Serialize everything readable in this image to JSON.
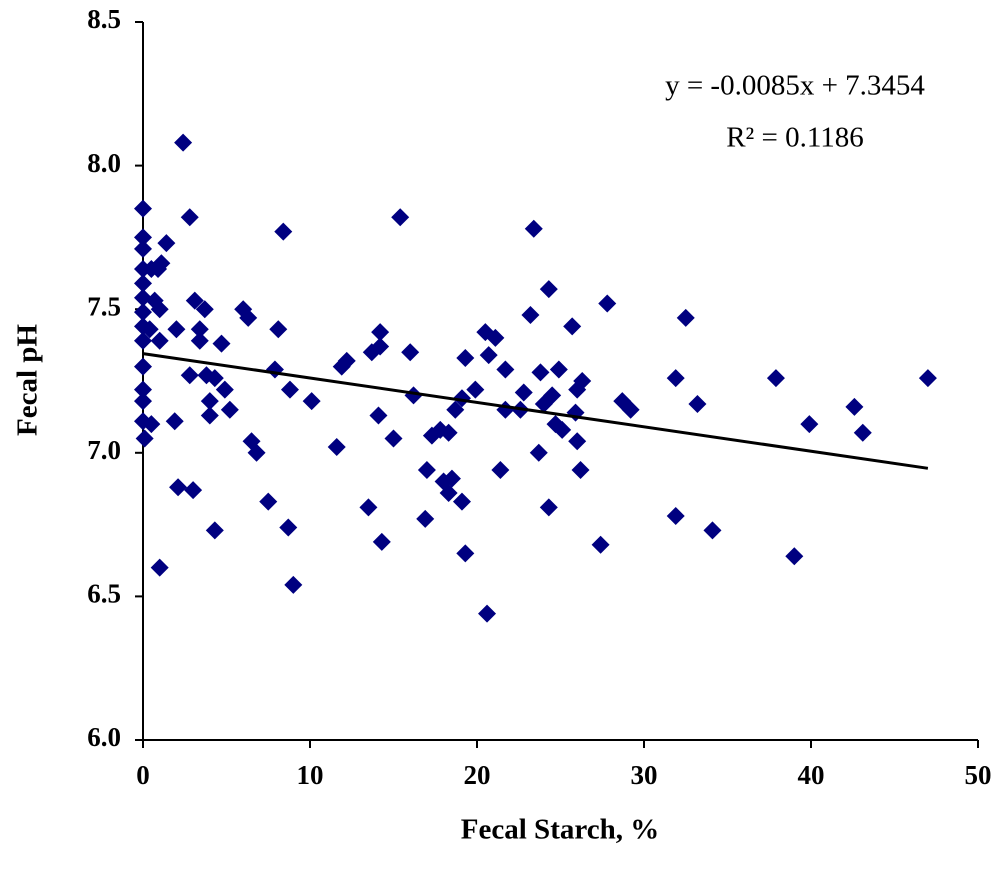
{
  "chart_data": {
    "type": "scatter",
    "xlabel": "Fecal Starch, %",
    "ylabel": "Fecal pH",
    "annotations": [
      "y = -0.0085x + 7.3454",
      "R² = 0.1186"
    ],
    "color": "#000080",
    "x": [
      0,
      0,
      0,
      0,
      0,
      0,
      0,
      0,
      0,
      0,
      0,
      0,
      0,
      0.1,
      0.4,
      0.5,
      0.7,
      0.9,
      1.0,
      1.1,
      1.0,
      0.5,
      1.4,
      1.9,
      2.0,
      2.1,
      2.4,
      2.8,
      2.8,
      3.0,
      3.1,
      3.4,
      3.7,
      3.8,
      3.4,
      4.0,
      4.0,
      4.3,
      4.3,
      4.7,
      4.9,
      5.2,
      6.0,
      6.3,
      6.5,
      6.8,
      7.5,
      7.9,
      8.1,
      8.4,
      8.7,
      8.8,
      9.0,
      10.1,
      1.0,
      11.6,
      11.9,
      12.2,
      13.5,
      13.7,
      14.1,
      14.2,
      14.2,
      14.3,
      15.0,
      15.4,
      16.0,
      16.2,
      16.9,
      17.0,
      17.3,
      17.8,
      18.0,
      18.3,
      18.3,
      18.5,
      18.7,
      19.1,
      19.1,
      19.3,
      19.3,
      19.9,
      20.5,
      20.6,
      20.7,
      21.1,
      21.4,
      21.7,
      21.7,
      22.6,
      22.8,
      23.2,
      23.4,
      23.7,
      23.8,
      24.0,
      24.3,
      24.3,
      24.5,
      24.7,
      24.9,
      25.1,
      25.7,
      25.9,
      26.0,
      26.0,
      26.2,
      26.3,
      27.4,
      27.8,
      28.7,
      29.2,
      31.9,
      31.9,
      32.5,
      33.2,
      34.1,
      37.9,
      39.0,
      39.9,
      42.6,
      43.1,
      47.0
    ],
    "values": [
      7.85,
      7.75,
      7.71,
      7.64,
      7.59,
      7.54,
      7.49,
      7.44,
      7.39,
      7.3,
      7.22,
      7.18,
      7.11,
      7.05,
      7.43,
      7.64,
      7.53,
      7.64,
      7.5,
      7.66,
      7.39,
      7.1,
      7.73,
      7.11,
      7.43,
      6.88,
      8.08,
      7.82,
      7.27,
      6.87,
      7.53,
      7.39,
      7.5,
      7.27,
      7.43,
      7.18,
      7.13,
      7.26,
      6.73,
      7.38,
      7.22,
      7.15,
      7.5,
      7.47,
      7.04,
      7.0,
      6.83,
      7.29,
      7.43,
      7.77,
      6.74,
      7.22,
      6.54,
      7.18,
      6.6,
      7.02,
      7.3,
      7.32,
      6.81,
      7.35,
      7.13,
      7.37,
      7.42,
      6.69,
      7.05,
      7.82,
      7.35,
      7.2,
      6.77,
      6.94,
      7.06,
      7.08,
      6.9,
      6.86,
      7.07,
      6.91,
      7.15,
      7.19,
      6.83,
      7.33,
      6.65,
      7.22,
      7.42,
      6.44,
      7.34,
      7.4,
      6.94,
      7.29,
      7.15,
      7.15,
      7.21,
      7.48,
      7.78,
      7.0,
      7.28,
      7.17,
      7.57,
      6.81,
      7.2,
      7.1,
      7.29,
      7.08,
      7.44,
      7.14,
      7.22,
      7.04,
      6.94,
      7.25,
      6.68,
      7.52,
      7.18,
      7.15,
      7.26,
      6.78,
      7.47,
      7.17,
      6.73,
      7.26,
      6.64,
      7.1,
      7.16,
      7.07,
      7.26
    ],
    "trendline": {
      "x": [
        0,
        47
      ],
      "values": [
        7.3454,
        6.946
      ]
    },
    "xlim": [
      0,
      50
    ],
    "xticks": [
      0,
      10,
      20,
      30,
      40,
      50
    ],
    "ylim": [
      6.0,
      8.5
    ],
    "yticks": [
      {
        "value": 6.0,
        "label": "6.0"
      },
      {
        "value": 6.5,
        "label": "6.5"
      },
      {
        "value": 7.0,
        "label": "7.0"
      },
      {
        "value": 7.5,
        "label": "7.5"
      },
      {
        "value": 8.0,
        "label": "8.0"
      },
      {
        "value": 8.5,
        "label": "8.5"
      }
    ],
    "grid": false
  }
}
